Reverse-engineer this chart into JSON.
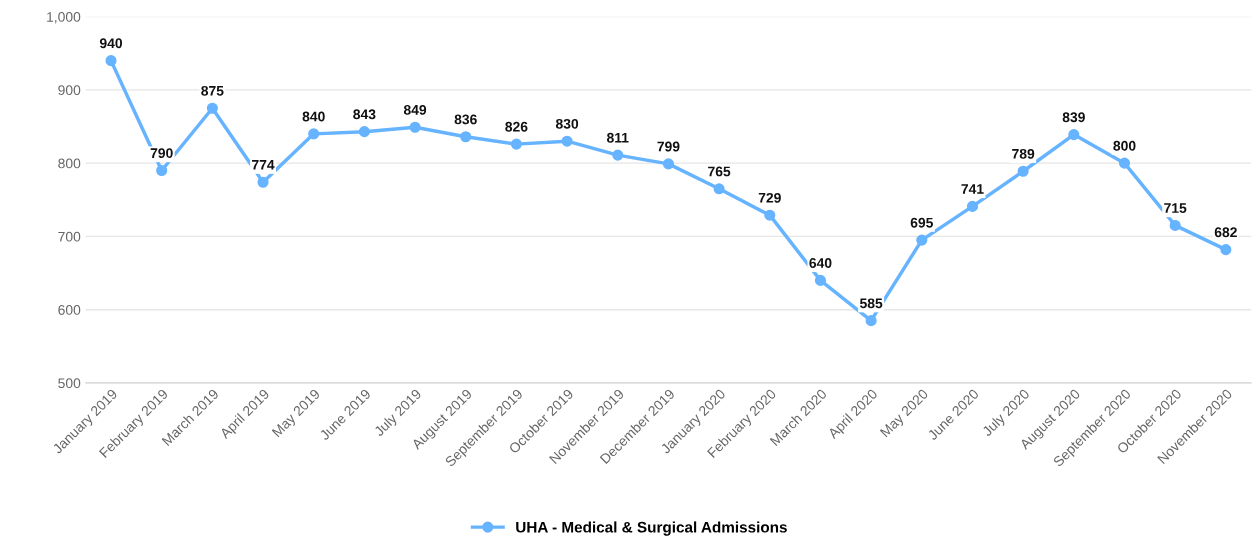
{
  "chart_data": {
    "type": "line",
    "categories": [
      "January 2019",
      "February 2019",
      "March 2019",
      "April 2019",
      "May 2019",
      "June 2019",
      "July 2019",
      "August 2019",
      "September 2019",
      "October 2019",
      "November 2019",
      "December 2019",
      "January 2020",
      "February 2020",
      "March 2020",
      "April 2020",
      "May 2020",
      "June 2020",
      "July 2020",
      "August 2020",
      "September 2020",
      "October 2020",
      "November 2020"
    ],
    "series": [
      {
        "name": "UHA - Medical & Surgical Admissions",
        "color": "#66b3ff",
        "values": [
          940,
          790,
          875,
          774,
          840,
          843,
          849,
          836,
          826,
          830,
          811,
          799,
          765,
          729,
          640,
          585,
          695,
          741,
          789,
          839,
          800,
          715,
          682
        ]
      }
    ],
    "ylim": [
      500,
      1000
    ],
    "yticks": [
      500,
      600,
      700,
      800,
      900,
      {
        "value": 1000,
        "label": "1,000"
      }
    ],
    "grid": "y",
    "legend": "bottom",
    "marker": "circle",
    "line_style": "solid",
    "data_labels": true
  }
}
